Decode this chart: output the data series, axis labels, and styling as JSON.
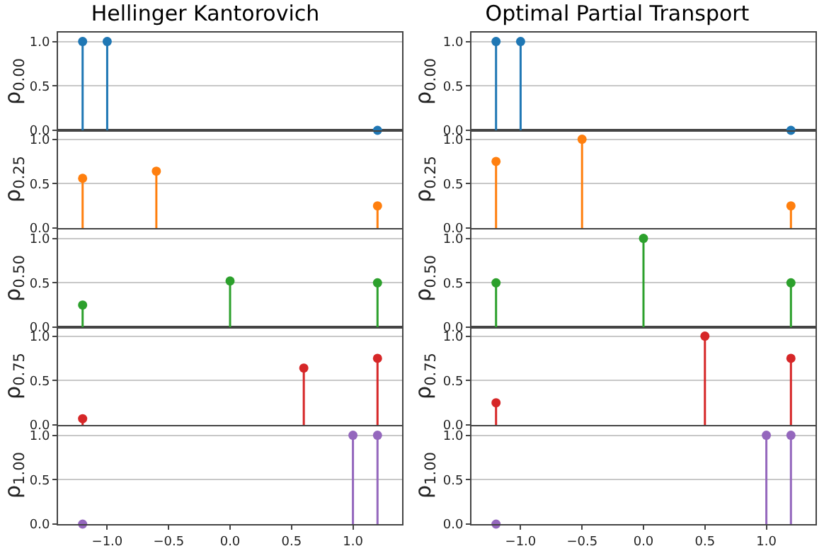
{
  "chart_data": [
    {
      "type": "lollipop",
      "title": "Hellinger Kantorovich",
      "ylabel": "ρ$_{0.00}$",
      "x": [
        -1.2,
        -1.0,
        1.2
      ],
      "values": [
        1.0,
        1.0,
        0.0
      ],
      "color": "#1f77b4",
      "xlim": [
        -1.4,
        1.4
      ],
      "ylim": [
        0,
        1.1
      ],
      "yticks": [
        {
          "value": 0,
          "label": "0.0"
        },
        {
          "value": 0.5,
          "label": "0.5"
        },
        {
          "value": 1,
          "label": "1.0"
        }
      ],
      "grid": "y",
      "marker": "circle",
      "tick_labels": "y"
    },
    {
      "type": "lollipop",
      "title": "Optimal Partial Transport",
      "ylabel": "ρ$_{0.00}$",
      "x": [
        -1.2,
        -1.0,
        1.2
      ],
      "values": [
        1.0,
        1.0,
        0.0
      ],
      "color": "#1f77b4",
      "xlim": [
        -1.4,
        1.4
      ],
      "ylim": [
        0,
        1.1
      ],
      "yticks": [
        {
          "value": 0,
          "label": "0.0"
        },
        {
          "value": 0.5,
          "label": "0.5"
        },
        {
          "value": 1,
          "label": "1.0"
        }
      ],
      "grid": "y",
      "marker": "circle",
      "tick_labels": "y"
    },
    {
      "type": "lollipop",
      "ylabel": "ρ$_{0.25}$",
      "x": [
        -1.2,
        -0.6,
        1.2
      ],
      "values": [
        0.56,
        0.64,
        0.25
      ],
      "color": "#ff7f0e",
      "xlim": [
        -1.4,
        1.4
      ],
      "ylim": [
        0,
        1.1
      ],
      "yticks": [
        {
          "value": 0,
          "label": "0.0"
        },
        {
          "value": 0.5,
          "label": "0.5"
        },
        {
          "value": 1,
          "label": "1.0"
        }
      ],
      "grid": "y",
      "marker": "circle",
      "tick_labels": "y"
    },
    {
      "type": "lollipop",
      "ylabel": "ρ$_{0.25}$",
      "x": [
        -1.2,
        -0.5,
        1.2
      ],
      "values": [
        0.75,
        1.0,
        0.25
      ],
      "color": "#ff7f0e",
      "xlim": [
        -1.4,
        1.4
      ],
      "ylim": [
        0,
        1.1
      ],
      "yticks": [
        {
          "value": 0,
          "label": "0.0"
        },
        {
          "value": 0.5,
          "label": "0.5"
        },
        {
          "value": 1,
          "label": "1.0"
        }
      ],
      "grid": "y",
      "marker": "circle",
      "tick_labels": "y"
    },
    {
      "type": "lollipop",
      "ylabel": "ρ$_{0.50}$",
      "x": [
        -1.2,
        0.0,
        1.2
      ],
      "values": [
        0.25,
        0.52,
        0.5
      ],
      "color": "#2ca02c",
      "xlim": [
        -1.4,
        1.4
      ],
      "ylim": [
        0,
        1.1
      ],
      "yticks": [
        {
          "value": 0,
          "label": "0.0"
        },
        {
          "value": 0.5,
          "label": "0.5"
        },
        {
          "value": 1,
          "label": "1.0"
        }
      ],
      "grid": "y",
      "marker": "circle",
      "tick_labels": "y"
    },
    {
      "type": "lollipop",
      "ylabel": "ρ$_{0.50}$",
      "x": [
        -1.2,
        0.0,
        1.2
      ],
      "values": [
        0.5,
        1.0,
        0.5
      ],
      "color": "#2ca02c",
      "xlim": [
        -1.4,
        1.4
      ],
      "ylim": [
        0,
        1.1
      ],
      "yticks": [
        {
          "value": 0,
          "label": "0.0"
        },
        {
          "value": 0.5,
          "label": "0.5"
        },
        {
          "value": 1,
          "label": "1.0"
        }
      ],
      "grid": "y",
      "marker": "circle",
      "tick_labels": "y"
    },
    {
      "type": "lollipop",
      "ylabel": "ρ$_{0.75}$",
      "x": [
        -1.2,
        0.6,
        1.2
      ],
      "values": [
        0.07,
        0.64,
        0.75
      ],
      "color": "#d62728",
      "xlim": [
        -1.4,
        1.4
      ],
      "ylim": [
        0,
        1.1
      ],
      "yticks": [
        {
          "value": 0,
          "label": "0.0"
        },
        {
          "value": 0.5,
          "label": "0.5"
        },
        {
          "value": 1,
          "label": "1.0"
        }
      ],
      "grid": "y",
      "marker": "circle",
      "tick_labels": "y"
    },
    {
      "type": "lollipop",
      "ylabel": "ρ$_{0.75}$",
      "x": [
        -1.2,
        0.5,
        1.2
      ],
      "values": [
        0.25,
        1.0,
        0.75
      ],
      "color": "#d62728",
      "xlim": [
        -1.4,
        1.4
      ],
      "ylim": [
        0,
        1.1
      ],
      "yticks": [
        {
          "value": 0,
          "label": "0.0"
        },
        {
          "value": 0.5,
          "label": "0.5"
        },
        {
          "value": 1,
          "label": "1.0"
        }
      ],
      "grid": "y",
      "marker": "circle",
      "tick_labels": "y"
    },
    {
      "type": "lollipop",
      "ylabel": "ρ$_{1.00}$",
      "x": [
        -1.2,
        1.0,
        1.2
      ],
      "values": [
        0.0,
        1.0,
        1.0
      ],
      "color": "#9467bd",
      "xlim": [
        -1.4,
        1.4
      ],
      "xticks": [
        {
          "value": -1,
          "label": "−1.0"
        },
        {
          "value": -0.5,
          "label": "−0.5"
        },
        {
          "value": 0,
          "label": "0.0"
        },
        {
          "value": 0.5,
          "label": "0.5"
        },
        {
          "value": 1,
          "label": "1.0"
        }
      ],
      "ylim": [
        0,
        1.1
      ],
      "yticks": [
        {
          "value": 0,
          "label": "0.0"
        },
        {
          "value": 0.5,
          "label": "0.5"
        },
        {
          "value": 1,
          "label": "1.0"
        }
      ],
      "grid": "y",
      "marker": "circle"
    },
    {
      "type": "lollipop",
      "ylabel": "ρ$_{1.00}$",
      "x": [
        -1.2,
        1.0,
        1.2
      ],
      "values": [
        0.0,
        1.0,
        1.0
      ],
      "color": "#9467bd",
      "xlim": [
        -1.4,
        1.4
      ],
      "xticks": [
        {
          "value": -1,
          "label": "−1.0"
        },
        {
          "value": -0.5,
          "label": "−0.5"
        },
        {
          "value": 0,
          "label": "0.0"
        },
        {
          "value": 0.5,
          "label": "0.5"
        },
        {
          "value": 1,
          "label": "1.0"
        }
      ],
      "ylim": [
        0,
        1.1
      ],
      "yticks": [
        {
          "value": 0,
          "label": "0.0"
        },
        {
          "value": 0.5,
          "label": "0.5"
        },
        {
          "value": 1,
          "label": "1.0"
        }
      ],
      "grid": "y",
      "marker": "circle"
    }
  ]
}
